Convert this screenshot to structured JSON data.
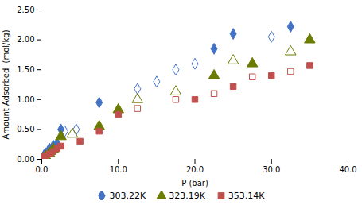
{
  "chart_data": {
    "type": "scatter",
    "xlabel": "P (bar)",
    "ylabel": "Amount Adsorbed  (mol/kg)",
    "xlim": [
      0,
      40.0
    ],
    "ylim": [
      0,
      2.5
    ],
    "xticks": [
      {
        "value": 0.0,
        "label": "0.0"
      },
      {
        "value": 10.0,
        "label": "10.0"
      },
      {
        "value": 20.0,
        "label": "20.0"
      },
      {
        "value": 30.0,
        "label": "30.0"
      },
      {
        "value": 40.0,
        "label": "40.0"
      }
    ],
    "yticks": [
      {
        "value": 0.0,
        "label": "0.00"
      },
      {
        "value": 0.5,
        "label": "0.50"
      },
      {
        "value": 1.0,
        "label": "1.00"
      },
      {
        "value": 1.5,
        "label": "1.50"
      },
      {
        "value": 2.0,
        "label": "2.00"
      },
      {
        "value": 2.5,
        "label": "2.50"
      }
    ],
    "grid": false,
    "legend": "bottom",
    "series": [
      {
        "name": "303.22K",
        "color": "#4472C4",
        "marker": "diamond",
        "x": [
          0.1,
          0.3,
          0.5,
          1.0,
          1.5,
          2.0,
          2.5,
          7.5,
          22.5,
          25.0,
          32.5
        ],
        "values": [
          0.03,
          0.07,
          0.1,
          0.18,
          0.23,
          0.27,
          0.5,
          0.95,
          1.85,
          2.1,
          2.22
        ]
      },
      {
        "color": "#4472C4",
        "marker": "open-diamond",
        "x": [
          3.0,
          4.5,
          12.5,
          15.0,
          17.5,
          20.0,
          30.0
        ],
        "values": [
          0.47,
          0.5,
          1.18,
          1.3,
          1.5,
          1.6,
          2.05
        ]
      },
      {
        "name": "323.19K",
        "color": "#6B7C00",
        "marker": "triangle",
        "x": [
          0.1,
          0.5,
          1.0,
          1.5,
          2.5,
          7.5,
          10.0,
          22.5,
          27.5,
          35.0
        ],
        "values": [
          0.01,
          0.05,
          0.1,
          0.17,
          0.38,
          0.55,
          0.83,
          1.4,
          1.6,
          2.0
        ]
      },
      {
        "color": "#6B7C00",
        "marker": "open-triangle",
        "x": [
          4.0,
          12.5,
          17.5,
          25.0,
          32.5
        ],
        "values": [
          0.42,
          1.0,
          1.13,
          1.65,
          1.8
        ]
      },
      {
        "name": "353.14K",
        "color": "#C0504D",
        "marker": "square",
        "x": [
          0.1,
          0.3,
          0.5,
          1.0,
          1.5,
          2.0,
          2.5,
          5.0,
          7.5,
          10.0,
          20.0,
          25.0,
          30.0,
          35.0
        ],
        "values": [
          0.02,
          0.04,
          0.06,
          0.09,
          0.13,
          0.18,
          0.22,
          0.3,
          0.47,
          0.75,
          1.0,
          1.22,
          1.4,
          1.57
        ]
      },
      {
        "color": "#C0504D",
        "marker": "open-square",
        "x": [
          12.5,
          17.5,
          22.5,
          27.5,
          32.5
        ],
        "values": [
          0.85,
          1.0,
          1.1,
          1.38,
          1.47
        ]
      }
    ]
  }
}
